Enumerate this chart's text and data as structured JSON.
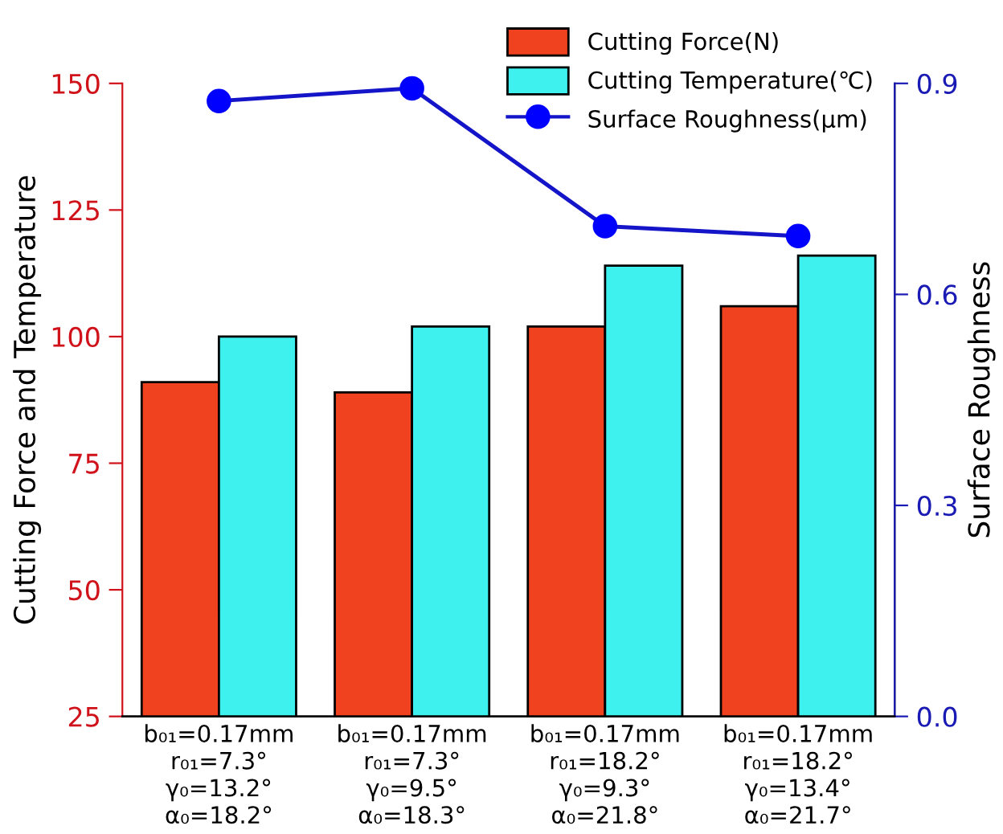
{
  "chart_data": {
    "type": "bar",
    "ylabel": "Cutting Force and Temperature",
    "y2label": "Surface Roughness",
    "categories": [
      "b₀₁=0.17mm\nr₀₁=7.3°\nγ₀=13.2°\nα₀=18.2°",
      "b₀₁=0.17mm\nr₀₁=7.3°\nγ₀=9.5°\nα₀=18.3°",
      "b₀₁=0.17mm\nr₀₁=18.2°\nγ₀=9.3°\nα₀=21.8°",
      "b₀₁=0.17mm\nr₀₁=18.2°\nγ₀=13.4°\nα₀=21.7°"
    ],
    "series": [
      {
        "name": "Cutting Force(N)",
        "color": "#f0421e",
        "values": [
          91,
          89,
          102,
          106
        ]
      },
      {
        "name": "Cutting Temperature(℃)",
        "color": "#3ef0ee",
        "values": [
          100,
          102,
          114,
          116
        ]
      },
      {
        "name": "Surface Roughness(μm)",
        "type": "line",
        "axis": "y2",
        "color": "#1414c8",
        "marker": "circle",
        "values": [
          0.875,
          0.893,
          0.697,
          0.683
        ]
      }
    ],
    "ylim": [
      25,
      150
    ],
    "yticks": [
      25,
      50,
      75,
      100,
      125,
      150
    ],
    "y2lim": [
      0,
      0.9
    ],
    "y2ticks": [
      {
        "value": 0,
        "label": "0.0"
      },
      0.3,
      0.6,
      0.9
    ],
    "grid": false,
    "legend": "top right"
  }
}
